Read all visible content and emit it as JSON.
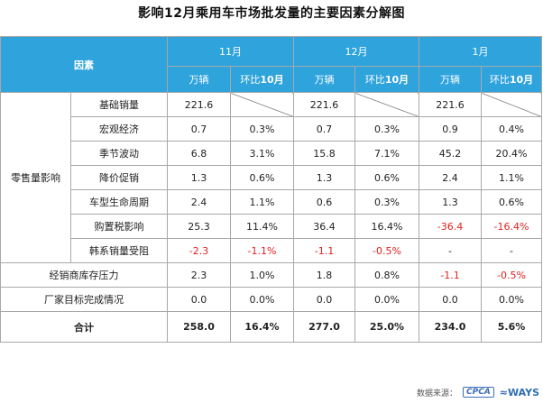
{
  "title": "影响12月乘用车市场批发量的主要因素分解图",
  "header": {
    "factor": "因素",
    "months": [
      "11月",
      "12月",
      "1月"
    ],
    "sub_units": "万辆",
    "sub_ratio_pre": "环比",
    "sub_ratio_strong": "10月"
  },
  "groups": {
    "retail": "零售量影响"
  },
  "rows": [
    {
      "name": "基础销量",
      "v11": "221.6",
      "p11": "",
      "v12": "221.6",
      "p12": "",
      "v1": "221.6",
      "p1": ""
    },
    {
      "name": "宏观经济",
      "v11": "0.7",
      "p11": "0.3%",
      "v12": "0.7",
      "p12": "0.3%",
      "v1": "0.9",
      "p1": "0.4%"
    },
    {
      "name": "季节波动",
      "v11": "6.8",
      "p11": "3.1%",
      "v12": "15.8",
      "p12": "7.1%",
      "v1": "45.2",
      "p1": "20.4%"
    },
    {
      "name": "降价促销",
      "v11": "1.3",
      "p11": "0.6%",
      "v12": "1.3",
      "p12": "0.6%",
      "v1": "2.4",
      "p1": "1.1%"
    },
    {
      "name": "车型生命周期",
      "v11": "2.4",
      "p11": "1.1%",
      "v12": "0.6",
      "p12": "0.3%",
      "v1": "1.3",
      "p1": "0.6%"
    },
    {
      "name": "购置税影响",
      "v11": "25.3",
      "p11": "11.4%",
      "v12": "36.4",
      "p12": "16.4%",
      "v1": "-36.4",
      "p1": "-16.4%"
    },
    {
      "name": "韩系销量受阻",
      "v11": "-2.3",
      "p11": "-1.1%",
      "v12": "-1.1",
      "p12": "-0.5%",
      "v1": "-",
      "p1": "-"
    }
  ],
  "extra_rows": [
    {
      "name": "经销商库存压力",
      "v11": "2.3",
      "p11": "1.0%",
      "v12": "1.8",
      "p12": "0.8%",
      "v1": "-1.1",
      "p1": "-0.5%"
    },
    {
      "name": "厂家目标完成情况",
      "v11": "0.0",
      "p11": "0.0%",
      "v12": "0.0",
      "p12": "0.0%",
      "v1": "0.0",
      "p1": "0.0%"
    }
  ],
  "total": {
    "name": "合计",
    "v11": "258.0",
    "p11": "16.4%",
    "v12": "277.0",
    "p12": "25.0%",
    "v1": "234.0",
    "p1": "5.6%"
  },
  "footer": {
    "source": "数据来源：",
    "cpca": "CPCA",
    "ways": "WAYS"
  },
  "colors": {
    "header": "#2ea3dc",
    "negative": "#e02020",
    "border": "#a8a8a8"
  }
}
